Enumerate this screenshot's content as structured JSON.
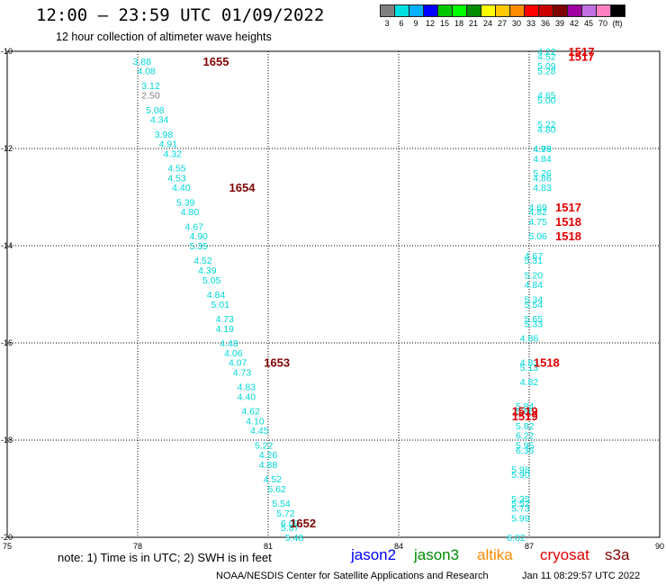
{
  "title": "12:00 – 23:59 UTC 01/09/2022",
  "subtitle": "12 hour collection of altimeter wave heights",
  "legend": {
    "colors": [
      "#808080",
      "#00e0e0",
      "#00b0ff",
      "#0000ff",
      "#00c800",
      "#00ff00",
      "#008c00",
      "#ffff00",
      "#ffc800",
      "#ff8c00",
      "#ff0000",
      "#c80000",
      "#800000",
      "#a000a0",
      "#c070e0",
      "#ff80c0",
      "#000000"
    ],
    "labels": [
      "3",
      "6",
      "9",
      "12",
      "15",
      "18",
      "21",
      "24",
      "27",
      "30",
      "33",
      "36",
      "39",
      "42",
      "45",
      "70",
      "(ft)"
    ]
  },
  "note": "note: 1) Time is in UTC; 2) SWH is in feet",
  "satellites": [
    {
      "name": "jason2",
      "color": "#0000ff"
    },
    {
      "name": "jason3",
      "color": "#008c00"
    },
    {
      "name": "altika",
      "color": "#ff8c00"
    },
    {
      "name": "cryosat",
      "color": "#e00000"
    },
    {
      "name": "s3a",
      "color": "#800000"
    }
  ],
  "credit": "NOAA/NESDIS Center for Satellite Applications and Research",
  "timestamp": "Jan 11 08:29:57 UTC 2022",
  "chart_data": {
    "type": "scatter",
    "title": "12:00 – 23:59 UTC 01/09/2022",
    "subtitle": "12 hour collection of altimeter wave heights",
    "xlim": [
      75,
      90
    ],
    "ylim": [
      -20,
      -10
    ],
    "x_ticks": [
      75,
      78,
      81,
      84,
      87,
      90
    ],
    "y_ticks": [
      -10,
      -12,
      -14,
      -16,
      -18,
      -20
    ],
    "grid": true,
    "tracks": [
      {
        "satellite": "s3a",
        "time_color": "#800000",
        "value_color": "#00d8d8",
        "time_labels": [
          {
            "text": "1655",
            "lon": 79.8,
            "lat": -10.2
          },
          {
            "text": "1654",
            "lon": 80.4,
            "lat": -12.8
          },
          {
            "text": "1653",
            "lon": 81.2,
            "lat": -16.4
          },
          {
            "text": "1652",
            "lon": 81.8,
            "lat": -19.7
          }
        ],
        "points": [
          {
            "lon": 78.1,
            "lat": -10.2,
            "v": "3.88"
          },
          {
            "lon": 78.2,
            "lat": -10.4,
            "v": "4.08"
          },
          {
            "lon": 78.3,
            "lat": -10.7,
            "v": "3.12"
          },
          {
            "lon": 78.3,
            "lat": -10.9,
            "v": "2.50",
            "color": "#808080"
          },
          {
            "lon": 78.4,
            "lat": -11.2,
            "v": "5.08"
          },
          {
            "lon": 78.5,
            "lat": -11.4,
            "v": "4.34"
          },
          {
            "lon": 78.6,
            "lat": -11.7,
            "v": "3.98"
          },
          {
            "lon": 78.7,
            "lat": -11.9,
            "v": "4.91"
          },
          {
            "lon": 78.8,
            "lat": -12.1,
            "v": "4.32"
          },
          {
            "lon": 78.9,
            "lat": -12.4,
            "v": "4.55"
          },
          {
            "lon": 78.9,
            "lat": -12.6,
            "v": "4.53"
          },
          {
            "lon": 79.0,
            "lat": -12.8,
            "v": "4.40"
          },
          {
            "lon": 79.1,
            "lat": -13.1,
            "v": "5.39"
          },
          {
            "lon": 79.2,
            "lat": -13.3,
            "v": "4.80"
          },
          {
            "lon": 79.3,
            "lat": -13.6,
            "v": "4.67"
          },
          {
            "lon": 79.4,
            "lat": -13.8,
            "v": "4.90"
          },
          {
            "lon": 79.4,
            "lat": -14.0,
            "v": "5.35"
          },
          {
            "lon": 79.5,
            "lat": -14.3,
            "v": "4.52"
          },
          {
            "lon": 79.6,
            "lat": -14.5,
            "v": "4.39"
          },
          {
            "lon": 79.7,
            "lat": -14.7,
            "v": "5.05"
          },
          {
            "lon": 79.8,
            "lat": -15.0,
            "v": "4.84"
          },
          {
            "lon": 79.9,
            "lat": -15.2,
            "v": "5.01"
          },
          {
            "lon": 80.0,
            "lat": -15.5,
            "v": "4.73"
          },
          {
            "lon": 80.0,
            "lat": -15.7,
            "v": "4.19"
          },
          {
            "lon": 80.1,
            "lat": -16.0,
            "v": "4.48"
          },
          {
            "lon": 80.2,
            "lat": -16.2,
            "v": "4.06"
          },
          {
            "lon": 80.3,
            "lat": -16.4,
            "v": "4.07"
          },
          {
            "lon": 80.4,
            "lat": -16.6,
            "v": "4.73"
          },
          {
            "lon": 80.5,
            "lat": -16.9,
            "v": "4.83"
          },
          {
            "lon": 80.5,
            "lat": -17.1,
            "v": "4.40"
          },
          {
            "lon": 80.6,
            "lat": -17.4,
            "v": "4.62"
          },
          {
            "lon": 80.7,
            "lat": -17.6,
            "v": "4.10"
          },
          {
            "lon": 80.8,
            "lat": -17.8,
            "v": "4.45"
          },
          {
            "lon": 80.9,
            "lat": -18.1,
            "v": "5.22"
          },
          {
            "lon": 81.0,
            "lat": -18.3,
            "v": "4.26"
          },
          {
            "lon": 81.0,
            "lat": -18.5,
            "v": "4.88"
          },
          {
            "lon": 81.1,
            "lat": -18.8,
            "v": "4.52"
          },
          {
            "lon": 81.2,
            "lat": -19.0,
            "v": "5.62"
          },
          {
            "lon": 81.3,
            "lat": -19.3,
            "v": "5.54"
          },
          {
            "lon": 81.4,
            "lat": -19.5,
            "v": "5.72"
          },
          {
            "lon": 81.5,
            "lat": -19.7,
            "v": "6.09"
          },
          {
            "lon": 81.5,
            "lat": -19.8,
            "v": "5.87"
          },
          {
            "lon": 81.6,
            "lat": -20.0,
            "v": "5.48"
          }
        ]
      },
      {
        "satellite": "cryosat",
        "time_color": "#e00000",
        "value_color": "#00d8d8",
        "time_labels": [
          {
            "text": "1517",
            "lon": 88.2,
            "lat": -10.0
          },
          {
            "text": "1517",
            "lon": 88.2,
            "lat": -10.1
          },
          {
            "text": "1517",
            "lon": 87.9,
            "lat": -13.2
          },
          {
            "text": "1518",
            "lon": 87.9,
            "lat": -13.5
          },
          {
            "text": "1518",
            "lon": 87.9,
            "lat": -13.8
          },
          {
            "text": "1518",
            "lon": 87.4,
            "lat": -16.4
          },
          {
            "text": "1519",
            "lon": 86.9,
            "lat": -17.4
          },
          {
            "text": "1519",
            "lon": 86.9,
            "lat": -17.5
          }
        ],
        "points": [
          {
            "lon": 87.4,
            "lat": -10.0,
            "v": "4.22"
          },
          {
            "lon": 87.4,
            "lat": -10.1,
            "v": "4.52"
          },
          {
            "lon": 87.4,
            "lat": -10.3,
            "v": "5.09"
          },
          {
            "lon": 87.4,
            "lat": -10.4,
            "v": "5.28"
          },
          {
            "lon": 87.4,
            "lat": -10.9,
            "v": "4.65"
          },
          {
            "lon": 87.4,
            "lat": -11.0,
            "v": "5.00"
          },
          {
            "lon": 87.4,
            "lat": -11.5,
            "v": "5.22"
          },
          {
            "lon": 87.4,
            "lat": -11.6,
            "v": "4.80"
          },
          {
            "lon": 87.3,
            "lat": -12.0,
            "v": "4.93"
          },
          {
            "lon": 87.3,
            "lat": -12.0,
            "v": "4.79"
          },
          {
            "lon": 87.3,
            "lat": -12.2,
            "v": "4.84"
          },
          {
            "lon": 87.3,
            "lat": -12.5,
            "v": "5.26"
          },
          {
            "lon": 87.3,
            "lat": -12.6,
            "v": "4.86"
          },
          {
            "lon": 87.3,
            "lat": -12.8,
            "v": "4.83"
          },
          {
            "lon": 87.2,
            "lat": -13.2,
            "v": "4.69"
          },
          {
            "lon": 87.2,
            "lat": -13.3,
            "v": "4.82"
          },
          {
            "lon": 87.2,
            "lat": -13.5,
            "v": "4.75"
          },
          {
            "lon": 87.2,
            "lat": -13.8,
            "v": "5.06"
          },
          {
            "lon": 87.1,
            "lat": -14.2,
            "v": "4.67"
          },
          {
            "lon": 87.1,
            "lat": -14.3,
            "v": "5.31"
          },
          {
            "lon": 87.1,
            "lat": -14.6,
            "v": "5.20"
          },
          {
            "lon": 87.1,
            "lat": -14.8,
            "v": "4.84"
          },
          {
            "lon": 87.1,
            "lat": -15.1,
            "v": "5.34"
          },
          {
            "lon": 87.1,
            "lat": -15.2,
            "v": "5.54"
          },
          {
            "lon": 87.1,
            "lat": -15.5,
            "v": "5.65"
          },
          {
            "lon": 87.1,
            "lat": -15.6,
            "v": "5.33"
          },
          {
            "lon": 87.0,
            "lat": -15.9,
            "v": "4.86"
          },
          {
            "lon": 87.0,
            "lat": -16.4,
            "v": "4.83"
          },
          {
            "lon": 87.0,
            "lat": -16.5,
            "v": "5.13"
          },
          {
            "lon": 87.0,
            "lat": -16.8,
            "v": "4.82"
          },
          {
            "lon": 86.9,
            "lat": -17.3,
            "v": "5.84"
          },
          {
            "lon": 86.9,
            "lat": -17.4,
            "v": "5.86"
          },
          {
            "lon": 86.9,
            "lat": -17.7,
            "v": "5.82"
          },
          {
            "lon": 86.9,
            "lat": -17.9,
            "v": "6.22"
          },
          {
            "lon": 86.9,
            "lat": -18.1,
            "v": "5.95"
          },
          {
            "lon": 86.9,
            "lat": -18.2,
            "v": "6.36"
          },
          {
            "lon": 86.8,
            "lat": -18.6,
            "v": "5.98"
          },
          {
            "lon": 86.8,
            "lat": -18.7,
            "v": "5.90"
          },
          {
            "lon": 86.8,
            "lat": -19.2,
            "v": "5.35"
          },
          {
            "lon": 86.8,
            "lat": -19.3,
            "v": "5.52"
          },
          {
            "lon": 86.8,
            "lat": -19.4,
            "v": "5.73"
          },
          {
            "lon": 86.8,
            "lat": -19.6,
            "v": "5.99"
          },
          {
            "lon": 86.7,
            "lat": -20.0,
            "v": "6.02"
          }
        ]
      }
    ]
  }
}
